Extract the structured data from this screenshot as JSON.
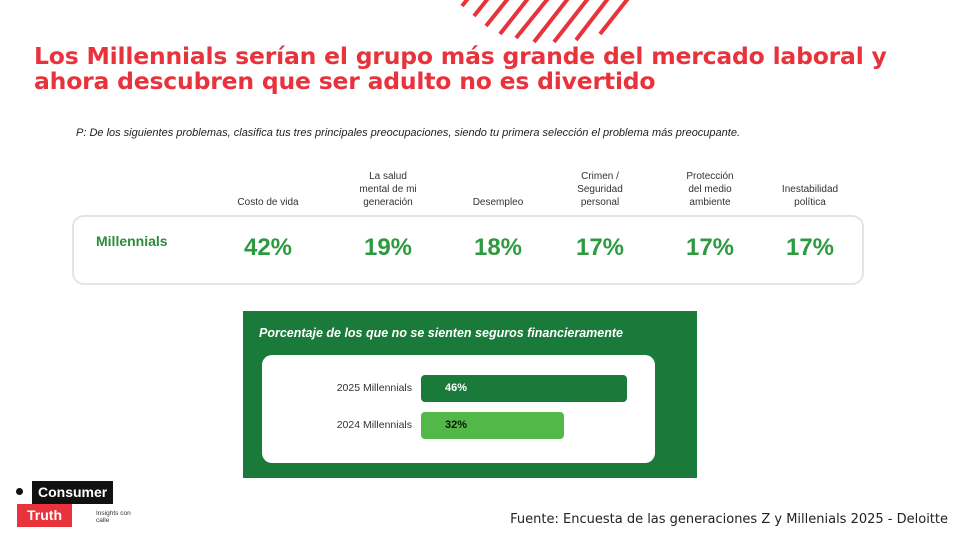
{
  "header": {
    "title_line1": "Los Millennials serían el grupo más grande del mercado laboral y",
    "title_line2": "ahora descubren que ser adulto no es divertido",
    "accent_color": "#e8333c"
  },
  "survey": {
    "question": "P: De los siguientes problemas, clasifica tus tres principales preocupaciones, siendo tu primera selección el problema más preocupante.",
    "row_label": "Millennials"
  },
  "chart_data": [
    {
      "type": "table",
      "categories": [
        [
          "Costo de vida"
        ],
        [
          "La salud",
          "mental de mi",
          "generación"
        ],
        [
          "Desempleo"
        ],
        [
          "Crimen /",
          "Seguridad",
          "personal"
        ],
        [
          "Protección",
          "del  medio",
          "ambiente"
        ],
        [
          "Inestabilidad",
          "política"
        ]
      ],
      "series": [
        {
          "name": "Millennials",
          "values": [
            42,
            19,
            18,
            17,
            17,
            17
          ],
          "labels": [
            "42%",
            "19%",
            "18%",
            "17%",
            "17%",
            "17%"
          ]
        }
      ],
      "value_color": "#2e9a40"
    },
    {
      "type": "bar",
      "orientation": "horizontal",
      "title": "Porcentaje de los que no se sienten seguros financieramente",
      "categories": [
        "2025 Millennials",
        "2024 Millennials"
      ],
      "values": [
        46,
        32
      ],
      "labels": [
        "46%",
        "32%"
      ],
      "colors": [
        "#1a7a3a",
        "#52b848"
      ],
      "xlim": [
        0,
        60
      ],
      "frame_color": "#1a7a3a"
    }
  ],
  "logo": {
    "word1": "Consumer",
    "word2": "Truth",
    "tagline": "Insights con calle"
  },
  "footer": {
    "source": "Fuente: Encuesta de las generaciones Z y Millenials 2025 - Deloitte"
  }
}
